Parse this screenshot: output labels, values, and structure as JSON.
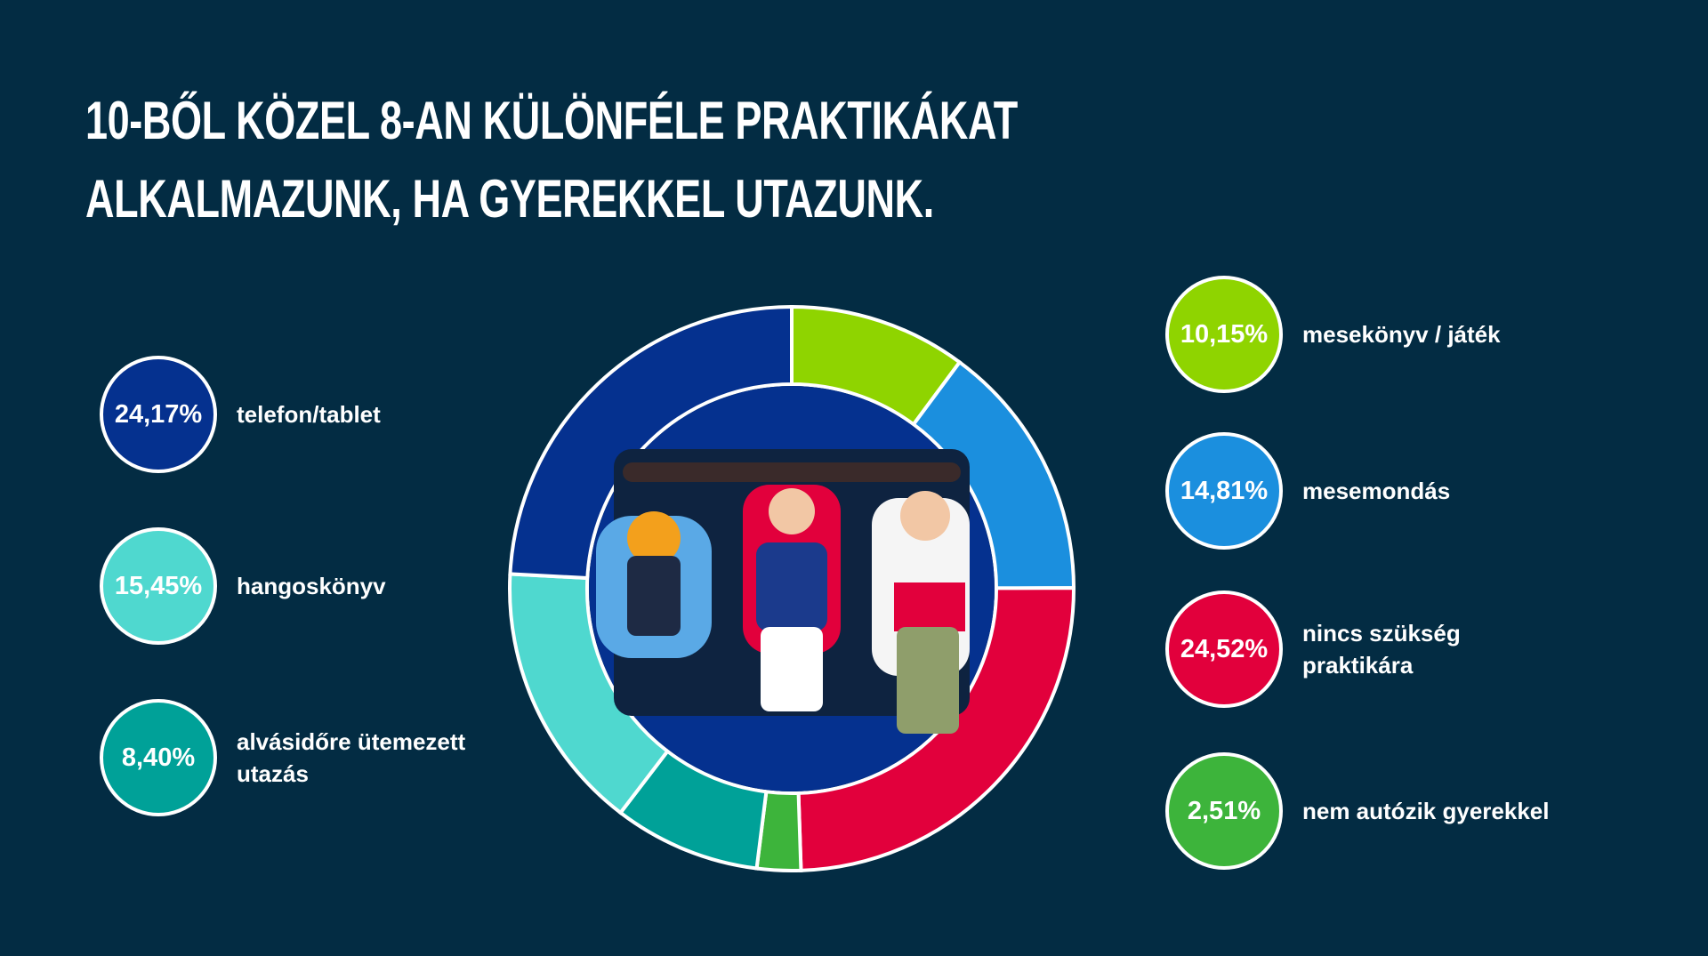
{
  "chart_data": {
    "type": "pie",
    "title": "10-BŐL KÖZEL 8-AN KÜLÖNFÉLE PRAKTIKÁKAT ALKALMAZUNK, HA GYEREKKEL UTAZUNK.",
    "series": [
      {
        "name": "mesekönyv / játék",
        "color": "#8fd400",
        "values": [
          10.15
        ],
        "value_labels": [
          "10,15%"
        ]
      },
      {
        "name": "mesemondás",
        "color": "#1b8fde",
        "values": [
          14.81
        ],
        "value_labels": [
          "14,81%"
        ]
      },
      {
        "name": "nincs szükség praktikára",
        "color": "#e2003c",
        "values": [
          24.52
        ],
        "value_labels": [
          "24,52%"
        ]
      },
      {
        "name": "nem autózik gyerekkel",
        "color": "#3db43b",
        "values": [
          2.51
        ],
        "value_labels": [
          "2,51%"
        ]
      },
      {
        "name": "alvásidőre ütemezett utazás",
        "color": "#00a198",
        "values": [
          8.4
        ],
        "value_labels": [
          "8,40%"
        ]
      },
      {
        "name": "hangoskönyv",
        "color": "#4fd8cf",
        "values": [
          15.45
        ],
        "value_labels": [
          "15,45%"
        ]
      },
      {
        "name": "telefon/tablet",
        "color": "#05318f",
        "values": [
          24.17
        ],
        "value_labels": [
          "24,17%"
        ]
      }
    ]
  }
}
